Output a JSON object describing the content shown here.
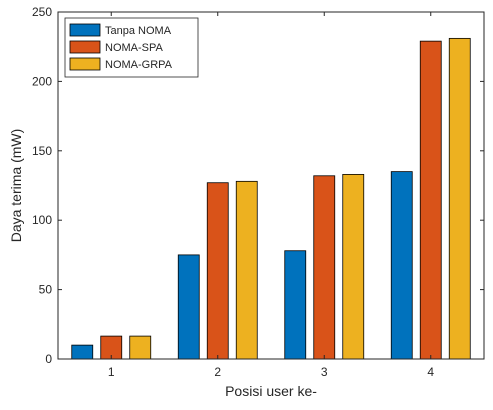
{
  "chart_data": {
    "type": "bar",
    "categories": [
      "1",
      "2",
      "3",
      "4"
    ],
    "series": [
      {
        "name": "Tanpa NOMA",
        "color": "#0072BD",
        "values": [
          10,
          75,
          78,
          135
        ]
      },
      {
        "name": "NOMA-SPA",
        "color": "#D95319",
        "values": [
          16.5,
          127,
          132,
          229
        ]
      },
      {
        "name": "NOMA-GRPA",
        "color": "#EDB120",
        "values": [
          16.5,
          128,
          133,
          231
        ]
      }
    ],
    "xlabel": "Posisi user ke-",
    "ylabel": "Daya terima (mW)",
    "ylim": [
      0,
      250
    ],
    "yticks": [
      0,
      50,
      100,
      150,
      200,
      250
    ],
    "grid": false,
    "legend_position": "top-left"
  }
}
